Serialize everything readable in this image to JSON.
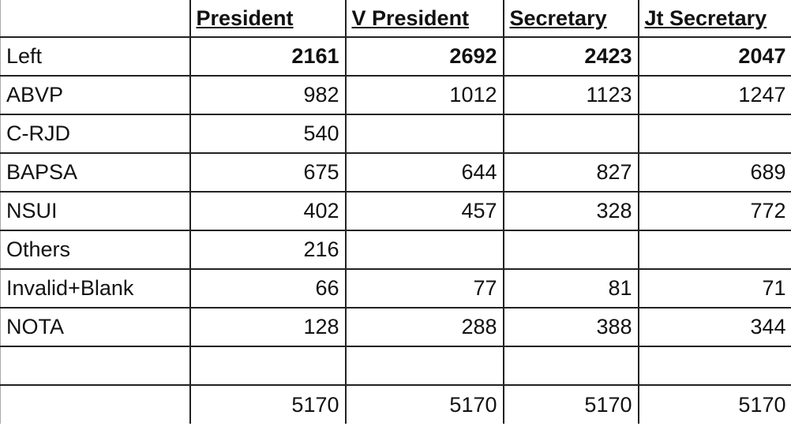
{
  "table": {
    "columns": [
      "President",
      "V President",
      "Secretary",
      "Jt Secretary"
    ],
    "rows": [
      {
        "label": "Left",
        "values": [
          2161,
          2692,
          2423,
          2047
        ]
      },
      {
        "label": "ABVP",
        "values": [
          982,
          1012,
          1123,
          1247
        ]
      },
      {
        "label": "C-RJD",
        "values": [
          540,
          null,
          null,
          null
        ]
      },
      {
        "label": "BAPSA",
        "values": [
          675,
          644,
          827,
          689
        ]
      },
      {
        "label": "NSUI",
        "values": [
          402,
          457,
          328,
          772
        ]
      },
      {
        "label": "Others",
        "values": [
          216,
          null,
          null,
          null
        ]
      },
      {
        "label": "Invalid+Blank",
        "values": [
          66,
          77,
          81,
          71
        ]
      },
      {
        "label": "NOTA",
        "values": [
          128,
          288,
          388,
          344
        ]
      },
      {
        "label": null,
        "values": [
          null,
          null,
          null,
          null
        ]
      },
      {
        "label": null,
        "values": [
          5170,
          5170,
          5170,
          5170
        ]
      }
    ]
  }
}
